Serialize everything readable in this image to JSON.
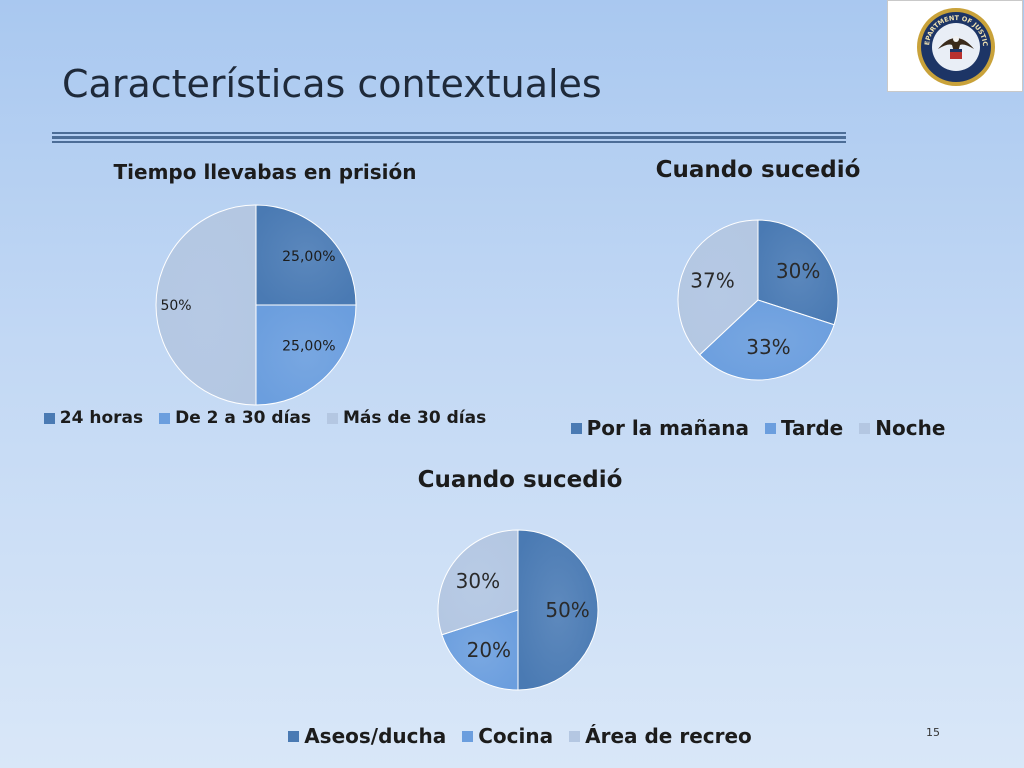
{
  "slide": {
    "title": "Características contextuales",
    "page_number": "15",
    "logo_text": "DEPARTMENT OF JUSTICE"
  },
  "colors": {
    "dark": "#4a7ab3",
    "medium": "#6b9ede",
    "light": "#b4c7e2"
  },
  "chart_data": [
    {
      "type": "pie",
      "title": "Tiempo llevabas en prisión",
      "categories": [
        "24 horas",
        "De 2 a 30 días",
        "Más de 30 días"
      ],
      "values": [
        25,
        25,
        50
      ],
      "labels": [
        "25,00%",
        "25,00%",
        "50%"
      ],
      "legend": "bottom"
    },
    {
      "type": "pie",
      "title": "Cuando sucedió",
      "categories": [
        "Por la mañana",
        "Tarde",
        "Noche"
      ],
      "values": [
        30,
        33,
        37
      ],
      "labels": [
        "30%",
        "33%",
        "37%"
      ],
      "legend": "bottom"
    },
    {
      "type": "pie",
      "title": "Cuando sucedió",
      "categories": [
        "Aseos/ducha",
        "Cocina",
        "Área de recreo"
      ],
      "values": [
        50,
        20,
        30
      ],
      "labels": [
        "50%",
        "20%",
        "30%"
      ],
      "legend": "bottom"
    }
  ]
}
